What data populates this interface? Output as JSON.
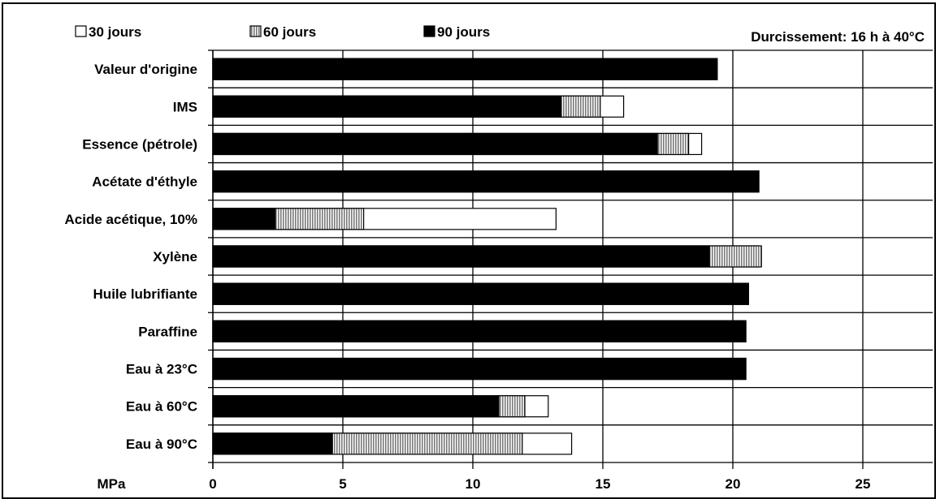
{
  "chart_data": {
    "type": "bar",
    "orientation": "horizontal",
    "stacked_overlap": true,
    "annotation": "Durcissement: 16 h à 40°C",
    "xlabel": "MPa",
    "xlim": [
      0,
      25
    ],
    "xticks": [
      "0",
      "5",
      "10",
      "15",
      "20",
      "25"
    ],
    "grid": "vertical",
    "legend_position": "top",
    "categories": [
      "Valeur d'origine",
      "IMS",
      "Essence (pétrole)",
      "Acétate d'éthyle",
      "Acide acétique, 10%",
      "Xylène",
      "Huile lubrifiante",
      "Paraffine",
      "Eau à 23°C",
      "Eau à 60°C",
      "Eau à 90°C"
    ],
    "series": [
      {
        "name": "30 jours",
        "color": "#ffffff",
        "pattern": "none",
        "values": [
          19.4,
          15.8,
          18.8,
          21.0,
          13.2,
          21.0,
          20.6,
          20.5,
          20.5,
          12.9,
          13.8
        ]
      },
      {
        "name": "60 jours",
        "color": "#c0c0c0",
        "pattern": "vertical-hatch",
        "values": [
          19.4,
          14.9,
          18.3,
          21.0,
          5.8,
          21.1,
          20.6,
          20.5,
          20.5,
          12.0,
          11.9
        ]
      },
      {
        "name": "90 jours",
        "color": "#000000",
        "pattern": "none",
        "values": [
          19.4,
          13.4,
          17.1,
          21.0,
          2.4,
          19.1,
          20.6,
          20.5,
          20.5,
          11.0,
          4.6
        ]
      }
    ]
  }
}
